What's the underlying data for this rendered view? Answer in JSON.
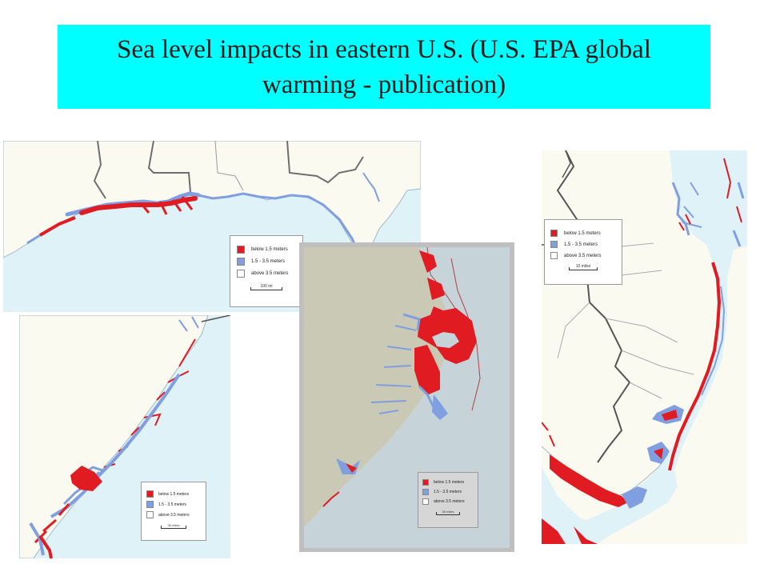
{
  "title": "Sea level impacts in eastern U.S. (U.S. EPA global warming - publication)",
  "colors": {
    "below": "#e11b22",
    "mid": "#7f9fe0",
    "above": "#ffffff",
    "water_gulf": "#dff2f8",
    "water_nc": "#c6d3d8",
    "land": "#fbfaf1",
    "land_nc": "#c9c9b6",
    "title_bg": "#00ffff"
  },
  "legend_labels": [
    "below 1.5 meters",
    "1.5 - 3.5 meters",
    "above 3.5 meters"
  ],
  "maps": {
    "gulf": {
      "legend": [
        "below 1.5 meters",
        "1.5 - 3.5 meters",
        "above 3.5 meters"
      ],
      "scale": "100 mi"
    },
    "carolinas": {
      "legend": [
        "below 1.5 meters",
        "1.5 - 3.5 meters",
        "above 3.5 meters"
      ],
      "scale": "30 miles"
    },
    "north_carolina": {
      "legend": [
        "below 1.5 meters",
        "1.5 - 3.5 meters",
        "above 3.5 meters"
      ],
      "scale": "30 miles"
    },
    "new_jersey": {
      "legend": [
        "below 1.5 meters",
        "1.5 - 3.5 meters",
        "above 3.5 meters"
      ],
      "scale": "10 miles"
    }
  }
}
